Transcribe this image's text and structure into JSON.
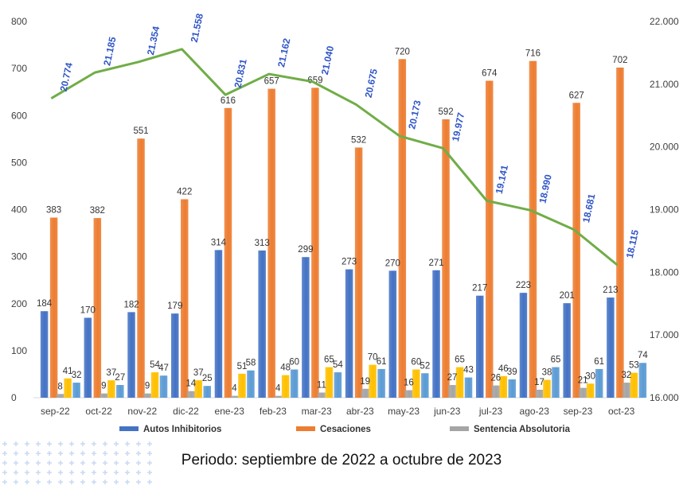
{
  "caption": "Periodo: septiembre de 2022 a octubre de 2023",
  "chart_data": {
    "type": "bar",
    "categories": [
      "sep-22",
      "oct-22",
      "nov-22",
      "dic-22",
      "ene-23",
      "feb-23",
      "mar-23",
      "abr-23",
      "may-23",
      "jun-23",
      "jul-23",
      "ago-23",
      "sep-23",
      "oct-23"
    ],
    "series": [
      {
        "name": "Autos Inhibitorios",
        "axis": "left",
        "color": "#4472C4",
        "values": [
          184,
          170,
          182,
          179,
          314,
          313,
          299,
          273,
          270,
          271,
          217,
          223,
          201,
          213
        ]
      },
      {
        "name": "Cesaciones",
        "axis": "left",
        "color": "#ED7D31",
        "values": [
          383,
          382,
          551,
          422,
          616,
          657,
          659,
          532,
          720,
          592,
          674,
          716,
          627,
          702
        ]
      },
      {
        "name": "Sentencia Absolutoria",
        "axis": "left",
        "color": "#A5A5A5",
        "values": [
          8,
          9,
          9,
          14,
          4,
          4,
          11,
          19,
          16,
          27,
          26,
          17,
          21,
          32
        ]
      },
      {
        "axis": "left",
        "color": "#FFC000",
        "values": [
          41,
          37,
          54,
          37,
          51,
          48,
          65,
          70,
          60,
          65,
          46,
          38,
          30,
          53
        ]
      },
      {
        "axis": "left",
        "color": "#5B9BD5",
        "values": [
          32,
          27,
          47,
          25,
          58,
          60,
          54,
          61,
          52,
          43,
          39,
          65,
          61,
          74
        ]
      }
    ],
    "line_series": {
      "axis": "right",
      "color": "#70AD47",
      "values": [
        20774,
        21185,
        21354,
        21558,
        20831,
        21162,
        21040,
        20675,
        20173,
        19977,
        19141,
        18990,
        18681,
        18115
      ],
      "labels": [
        "20.774",
        "21.185",
        "21.354",
        "21.558",
        "20.831",
        "21.162",
        "21.040",
        "20.675",
        "20.173",
        "19.977",
        "19.141",
        "18.990",
        "18.681",
        "18.115"
      ]
    },
    "y_left": {
      "min": 0,
      "max": 800,
      "ticks": [
        0,
        100,
        200,
        300,
        400,
        500,
        600,
        700,
        800
      ],
      "tick_labels": [
        "0",
        "100",
        "200",
        "300",
        "400",
        "500",
        "600",
        "700",
        "800"
      ]
    },
    "y_right": {
      "min": 16000,
      "max": 22000,
      "ticks": [
        16000,
        17000,
        18000,
        19000,
        20000,
        21000,
        22000
      ],
      "tick_labels": [
        "16.000",
        "17.000",
        "18.000",
        "19.000",
        "20.000",
        "21.000",
        "22.000"
      ]
    },
    "legend_placement": "bottom",
    "legend": [
      "Autos Inhibitorios",
      "Cesaciones",
      "Sentencia Absolutoria"
    ],
    "grid": false
  }
}
